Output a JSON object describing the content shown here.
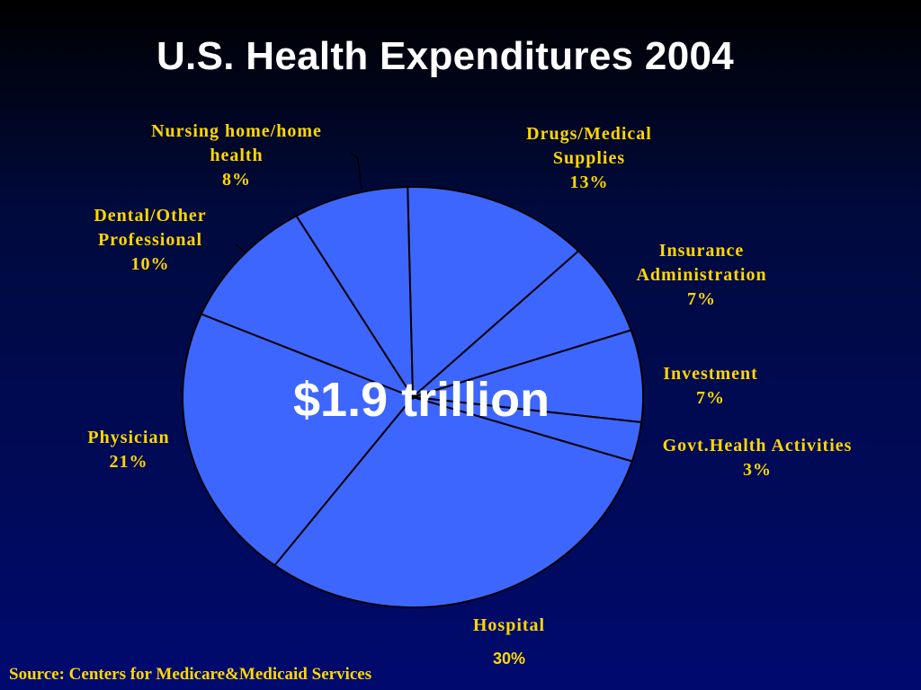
{
  "title": "U.S. Health Expenditures 2004",
  "total_label": "$1.9 trillion",
  "source": "Source: Centers for Medicare&Medicaid Services",
  "colors": {
    "slice": "#3d66ff",
    "label": "#ffd700",
    "title": "#ffffff",
    "outline": "#000000"
  },
  "chart_data": {
    "type": "pie",
    "slices": [
      {
        "label": "Drugs/Medical Supplies",
        "line1": "Drugs/Medical",
        "line2": "Supplies",
        "value": 13,
        "pct": "13%"
      },
      {
        "label": "Insurance Administration",
        "line1": "Insurance",
        "line2": "Administration",
        "value": 7,
        "pct": "7%"
      },
      {
        "label": "Investment",
        "line1": "Investment",
        "line2": "",
        "value": 7,
        "pct": "7%"
      },
      {
        "label": "Govt.Health Activities",
        "line1": "Govt.Health Activities",
        "line2": "",
        "value": 3,
        "pct": "3%"
      },
      {
        "label": "Hospital",
        "line1": "Hospital",
        "line2": "",
        "value": 30,
        "pct": "30%"
      },
      {
        "label": "Physician",
        "line1": "Physician",
        "line2": "",
        "value": 21,
        "pct": "21%"
      },
      {
        "label": "Dental/Other Professional",
        "line1": "Dental/Other",
        "line2": "Professional",
        "value": 10,
        "pct": "10%"
      },
      {
        "label": "Nursing home/home health",
        "line1": "Nursing home/home",
        "line2": "health",
        "value": 8,
        "pct": "8%"
      }
    ]
  }
}
